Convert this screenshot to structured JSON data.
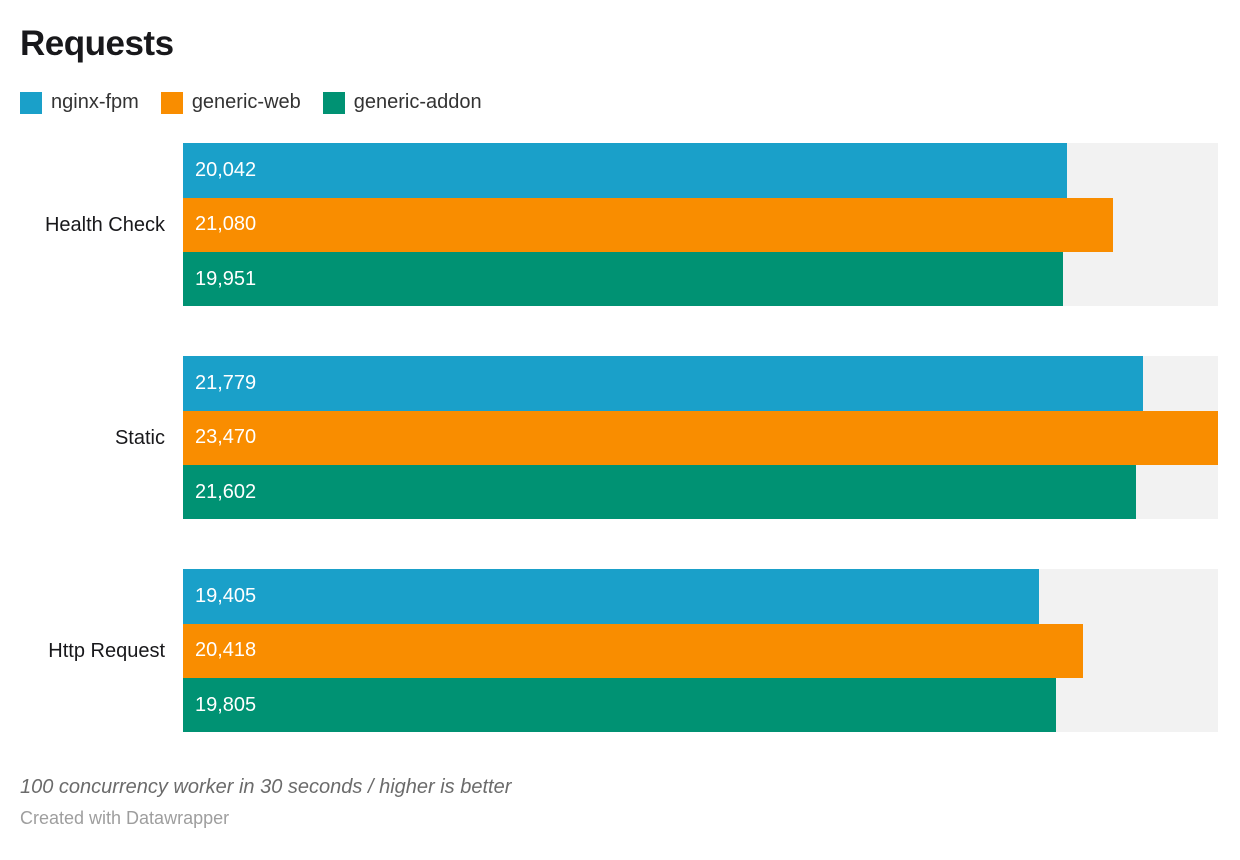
{
  "chart_data": {
    "type": "bar",
    "orientation": "horizontal",
    "title": "Requests",
    "categories": [
      "Health Check",
      "Static",
      "Http Request"
    ],
    "series": [
      {
        "name": "nginx-fpm",
        "color": "#1AA0C9",
        "values": [
          20042,
          21779,
          19405
        ],
        "labels": [
          "20,042",
          "21,779",
          "19,405"
        ]
      },
      {
        "name": "generic-web",
        "color": "#F98D00",
        "values": [
          21080,
          23470,
          20418
        ],
        "labels": [
          "21,080",
          "23,470",
          "20,418"
        ]
      },
      {
        "name": "generic-addon",
        "color": "#009273",
        "values": [
          19951,
          21602,
          19805
        ],
        "labels": [
          "19,951",
          "21,602",
          "19,805"
        ]
      }
    ],
    "xmax": 23470,
    "track_color": "#F2F2F2",
    "legend_position": "top",
    "grid": false,
    "note": "100 concurrency worker in 30 seconds / higher is better",
    "attribution": "Created with Datawrapper"
  }
}
